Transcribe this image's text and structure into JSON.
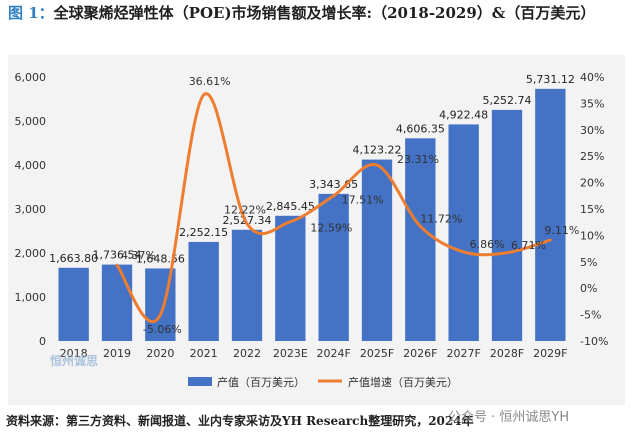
{
  "figure": {
    "prefix": "图 1：",
    "title": "全球聚烯烃弹性体（POE)市场销售额及增长率:（2018-2029）&（百万美元）"
  },
  "source_note": "资料来源：第三方资料、新闻报道、业内专家采访及YH Research整理研究，2024年",
  "watermark": "公众号 · 恒州诚思YH",
  "logo_text": "恒州诚思",
  "colors": {
    "bar": "#4472c4",
    "line": "#ed7d31",
    "panel": "#f3f3f3"
  },
  "chart_data": {
    "type": "bar",
    "categories": [
      "2018",
      "2019",
      "2020",
      "2021",
      "2022",
      "2023E",
      "2024F",
      "2025F",
      "2026F",
      "2027F",
      "2028F",
      "2029F"
    ],
    "series": [
      {
        "name": "产值（百万美元）",
        "type": "bar",
        "axis": "left",
        "values": [
          1663.8,
          1736.54,
          1648.56,
          2252.15,
          2527.34,
          2845.45,
          3343.65,
          4123.22,
          4606.35,
          4922.48,
          5252.74,
          5731.12
        ],
        "labels": [
          "1,663.80",
          "1,736.54",
          "1,648.56",
          "2,252.15",
          "2,527.34",
          "2,845.45",
          "3,343.65",
          "4,123.22",
          "4,606.35",
          "4,922.48",
          "5,252.74",
          "5,731.12"
        ]
      },
      {
        "name": "产值增速（百万美元）",
        "type": "line",
        "axis": "right",
        "values": [
          null,
          4.37,
          -5.06,
          36.61,
          12.22,
          12.59,
          17.51,
          23.31,
          11.72,
          6.86,
          6.71,
          9.11
        ],
        "labels": [
          "",
          "4.37%",
          "-5.06%",
          "36.61%",
          "12.22%",
          "12.59%",
          "17.51%",
          "23.31%",
          "11.72%",
          "6.86%",
          "6.71%",
          "9.11%"
        ]
      }
    ],
    "y_left": {
      "min": 0,
      "max": 6000,
      "ticks": [
        "0",
        "1,000",
        "2,000",
        "3,000",
        "4,000",
        "5,000",
        "6,000"
      ]
    },
    "y_right": {
      "min": -10,
      "max": 40,
      "ticks": [
        "-10%",
        "-5%",
        "0%",
        "5%",
        "10%",
        "15%",
        "20%",
        "25%",
        "30%",
        "35%",
        "40%"
      ]
    },
    "legend": {
      "position": "bottom"
    },
    "grid": false
  }
}
